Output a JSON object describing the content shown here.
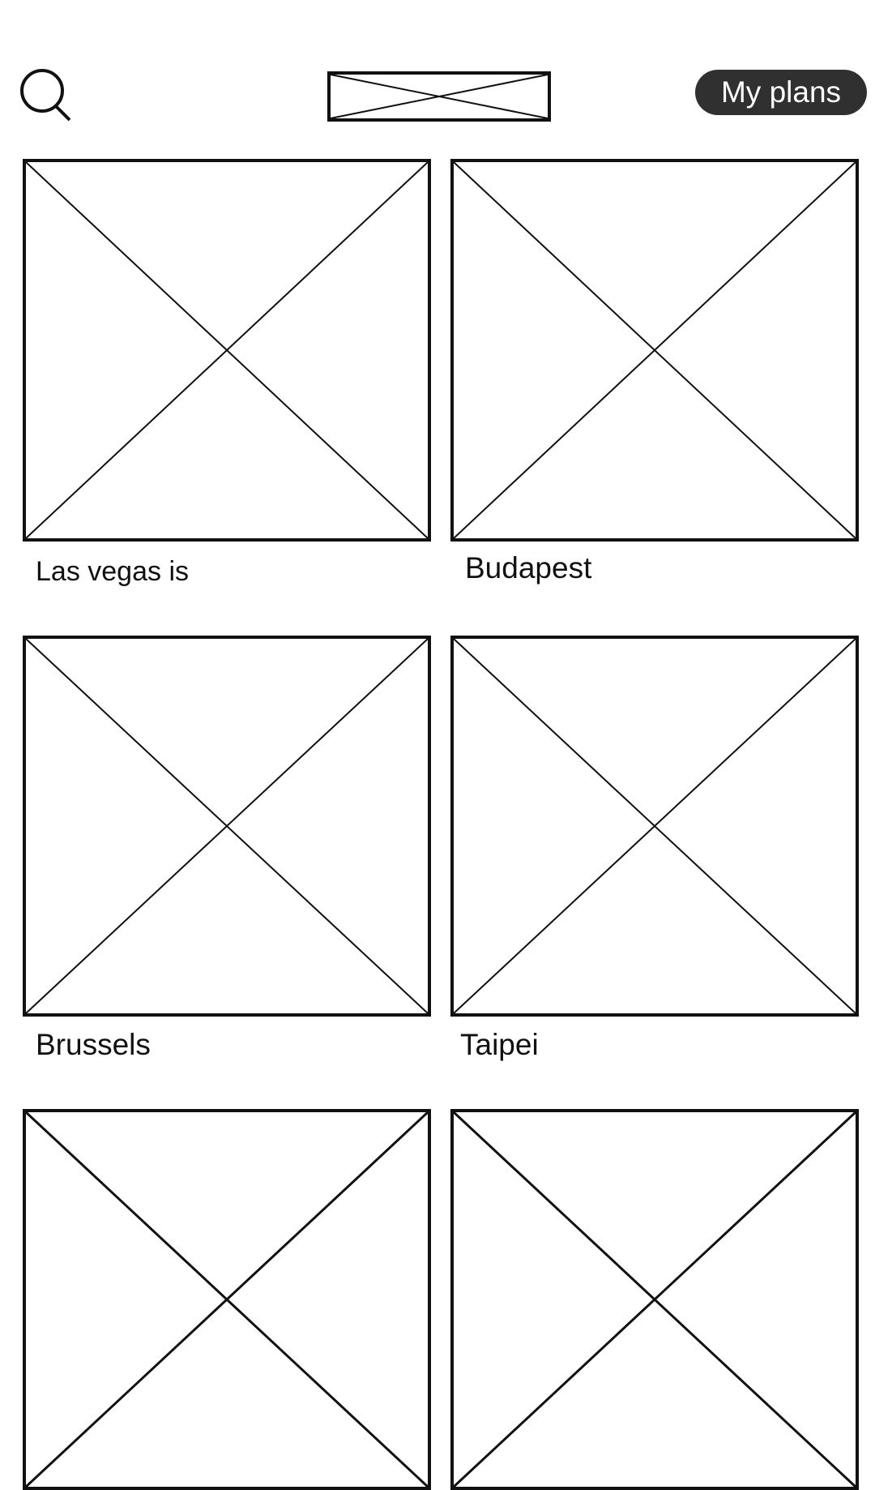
{
  "header": {
    "search_icon": "search-icon",
    "logo_icon": "image-placeholder-icon",
    "plans_label": "My plans",
    "plans_bg": "#303030",
    "plans_fg": "#ffffff"
  },
  "destinations": [
    {
      "name": "Las vegas is",
      "image_icon": "image-placeholder-icon"
    },
    {
      "name": "Budapest",
      "image_icon": "image-placeholder-icon"
    },
    {
      "name": "Brussels",
      "image_icon": "image-placeholder-icon"
    },
    {
      "name": "Taipei",
      "image_icon": "image-placeholder-icon"
    },
    {
      "name": "",
      "image_icon": "image-placeholder-icon"
    },
    {
      "name": "",
      "image_icon": "image-placeholder-icon"
    }
  ]
}
